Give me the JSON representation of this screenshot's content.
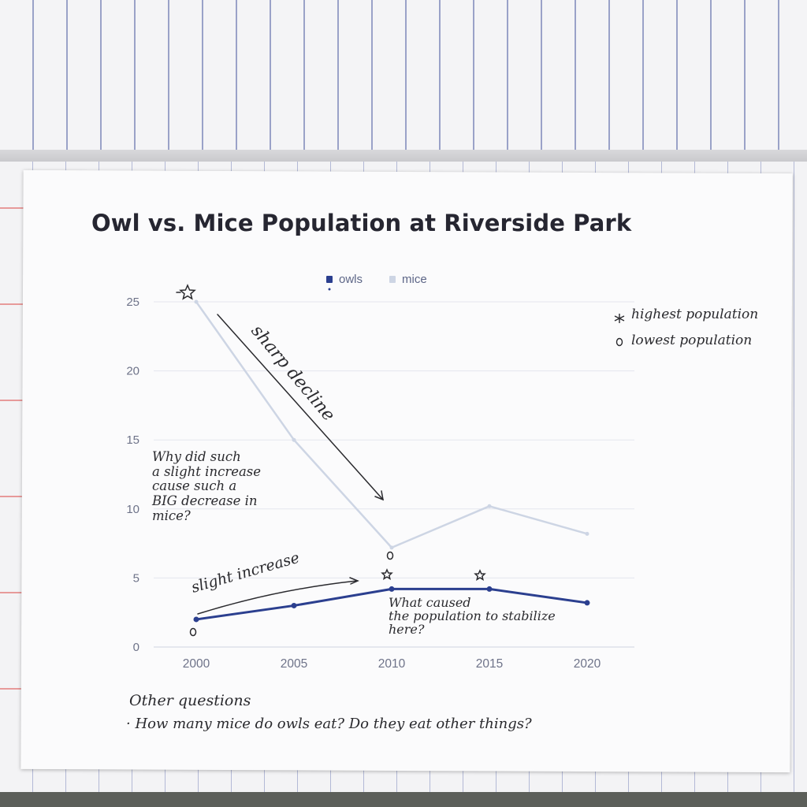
{
  "chart_data": {
    "type": "line",
    "title": "Owl vs. Mice Population at Riverside Park",
    "x": [
      "2000",
      "2005",
      "2010",
      "2015",
      "2020"
    ],
    "series": [
      {
        "name": "owls",
        "values": [
          2,
          3,
          4.2,
          4.2,
          3.2
        ],
        "color": "#2b3f8f"
      },
      {
        "name": "mice",
        "values": [
          25,
          15,
          7.2,
          10.2,
          8.2
        ],
        "color": "#cdd5e4"
      }
    ],
    "yticks": [
      "0",
      "5",
      "10",
      "15",
      "20",
      "25"
    ],
    "ylim": [
      0,
      25
    ],
    "grid": true,
    "legend_position": "top-center"
  },
  "annotations": {
    "key_highest": "highest population",
    "key_lowest": "lowest population",
    "sharp_decline": "sharp decline",
    "slight_increase": "slight increase",
    "question_mice": "Why did such\na slight increase\ncause such a\nBIG decrease in\nmice?",
    "question_stabilize": "What caused\nthe population to stabilize\nhere?",
    "other_questions_heading": "Other questions",
    "other_questions_item": "· How many mice do owls eat? Do they eat other things?"
  },
  "colors": {
    "owls": "#2b3f8f",
    "mice": "#cdd5e4",
    "grid": "#e4e6ee",
    "tick": "#6e7389"
  }
}
